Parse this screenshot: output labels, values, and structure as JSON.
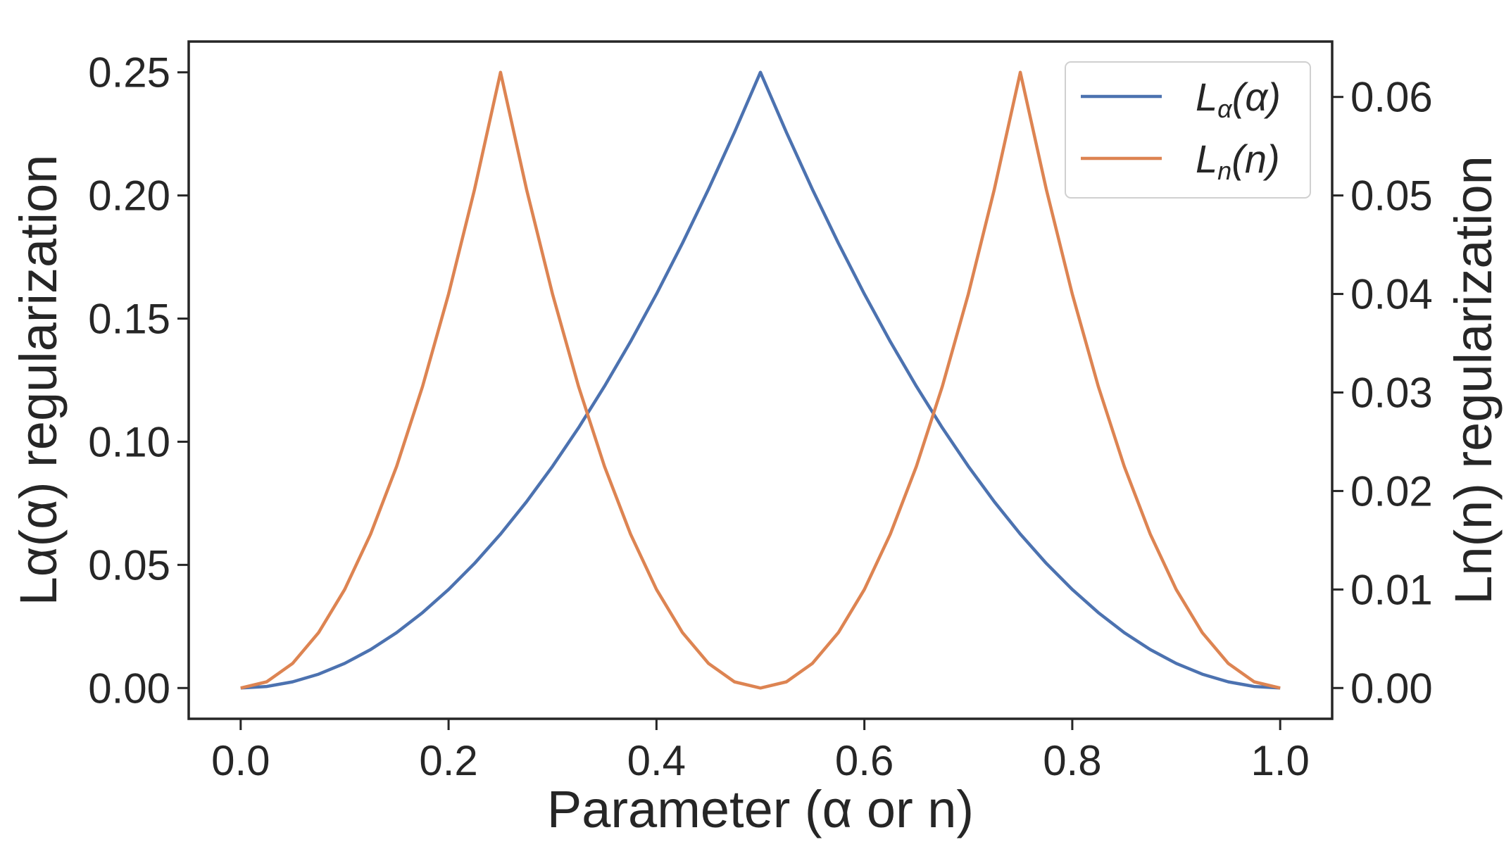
{
  "chart_data": {
    "type": "line",
    "xlabel": "Parameter (α or n)",
    "ylabel_left": "Lα(α) regularization",
    "ylabel_right": "Ln(n) regularization",
    "xlim": [
      -0.05,
      1.05
    ],
    "ylim_left": [
      -0.0125,
      0.2625
    ],
    "ylim_right": [
      -0.003125,
      0.065625
    ],
    "x_ticks": [
      "0.0",
      "0.2",
      "0.4",
      "0.6",
      "0.8",
      "1.0"
    ],
    "x_tick_values": [
      0,
      0.2,
      0.4,
      0.6,
      0.8,
      1.0
    ],
    "y_left_ticks": [
      "0.00",
      "0.05",
      "0.10",
      "0.15",
      "0.20",
      "0.25"
    ],
    "y_left_tick_values": [
      0,
      0.05,
      0.1,
      0.15,
      0.2,
      0.25
    ],
    "y_right_ticks": [
      "0.00",
      "0.01",
      "0.02",
      "0.03",
      "0.04",
      "0.05",
      "0.06"
    ],
    "y_right_tick_values": [
      0,
      0.01,
      0.02,
      0.03,
      0.04,
      0.05,
      0.06
    ],
    "legend_position": "top-right",
    "x": [
      0,
      0.025,
      0.05,
      0.075,
      0.1,
      0.125,
      0.15,
      0.175,
      0.2,
      0.225,
      0.25,
      0.275,
      0.3,
      0.325,
      0.35,
      0.375,
      0.4,
      0.425,
      0.45,
      0.475,
      0.5,
      0.525,
      0.55,
      0.575,
      0.6,
      0.625,
      0.65,
      0.675,
      0.7,
      0.725,
      0.75,
      0.775,
      0.8,
      0.825,
      0.85,
      0.875,
      0.9,
      0.925,
      0.95,
      0.975,
      1.0
    ],
    "series": [
      {
        "name": "Lα(α)",
        "legend_main": "L",
        "legend_sub": "α",
        "legend_arg": "(α)",
        "axis": "left",
        "color": "#4c72b0",
        "values": [
          0,
          0.000625,
          0.0025,
          0.005625,
          0.01,
          0.015625,
          0.0225,
          0.030625,
          0.04,
          0.050625,
          0.0625,
          0.075625,
          0.09,
          0.105625,
          0.1225,
          0.140625,
          0.16,
          0.180625,
          0.2025,
          0.225625,
          0.25,
          0.225625,
          0.2025,
          0.180625,
          0.16,
          0.140625,
          0.1225,
          0.105625,
          0.09,
          0.075625,
          0.0625,
          0.050625,
          0.04,
          0.030625,
          0.0225,
          0.015625,
          0.01,
          0.005625,
          0.0025,
          0.000625,
          0
        ]
      },
      {
        "name": "Ln(n)",
        "legend_main": "L",
        "legend_sub": "n",
        "legend_arg": "(n)",
        "axis": "right",
        "color": "#dd8452",
        "values": [
          0,
          0.000625,
          0.0025,
          0.005625,
          0.01,
          0.015625,
          0.0225,
          0.030625,
          0.04,
          0.050625,
          0.0625,
          0.050625,
          0.04,
          0.030625,
          0.0225,
          0.015625,
          0.01,
          0.005625,
          0.0025,
          0.000625,
          0,
          0.000625,
          0.0025,
          0.005625,
          0.01,
          0.015625,
          0.0225,
          0.030625,
          0.04,
          0.050625,
          0.0625,
          0.050625,
          0.04,
          0.030625,
          0.0225,
          0.015625,
          0.01,
          0.005625,
          0.0025,
          0.000625,
          0
        ]
      }
    ]
  }
}
